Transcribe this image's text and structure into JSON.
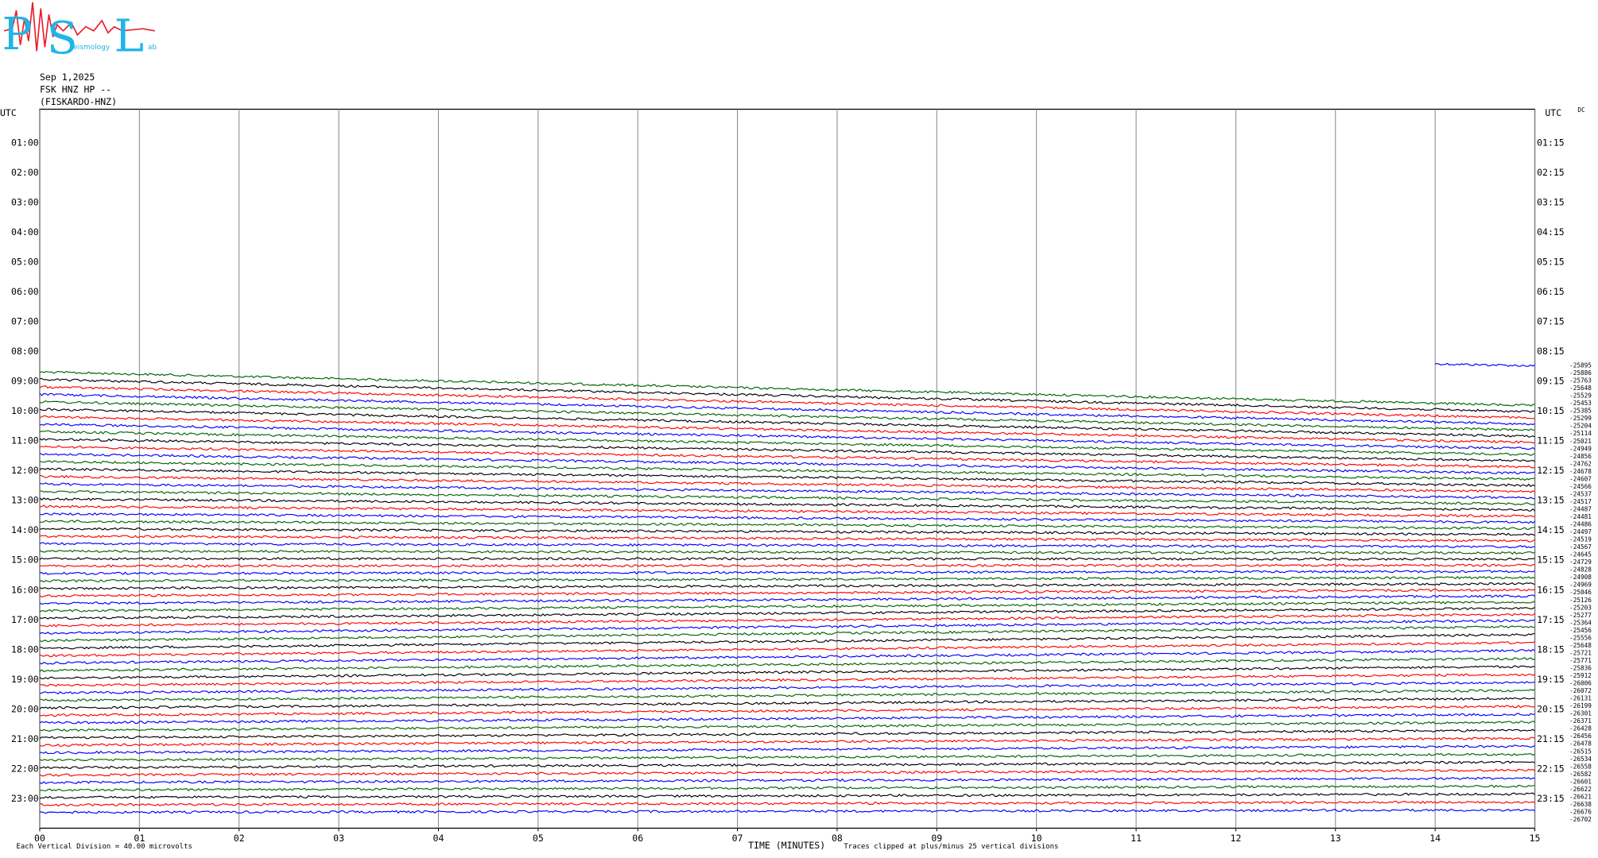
{
  "logo": {
    "p": "P",
    "s": "S",
    "l": "L",
    "seismology": "eismology",
    "lab": "ab"
  },
  "header": {
    "date": "Sep 1,2025",
    "station": "FSK HNZ HP --",
    "station_name": "(FISKARDO-HNZ)"
  },
  "chart_data": {
    "type": "helicorder",
    "left_axis_title": "UTC",
    "right_axis_title": "UTC",
    "dc_title": "DC",
    "left_hours": [
      "01:00",
      "02:00",
      "03:00",
      "04:00",
      "05:00",
      "06:00",
      "07:00",
      "08:00",
      "09:00",
      "10:00",
      "11:00",
      "12:00",
      "13:00",
      "14:00",
      "15:00",
      "16:00",
      "17:00",
      "18:00",
      "19:00",
      "20:00",
      "21:00",
      "22:00",
      "23:00"
    ],
    "right_hours": [
      "01:15",
      "02:15",
      "03:15",
      "04:15",
      "05:15",
      "06:15",
      "07:15",
      "08:15",
      "09:15",
      "10:15",
      "11:15",
      "12:15",
      "13:15",
      "14:15",
      "15:15",
      "16:15",
      "17:15",
      "18:15",
      "19:15",
      "20:15",
      "21:15",
      "22:15",
      "23:15"
    ],
    "xlim": [
      0,
      15
    ],
    "xticks": [
      {
        "value": 0,
        "label": "00"
      },
      {
        "value": 1,
        "label": "01"
      },
      {
        "value": 2,
        "label": "02"
      },
      {
        "value": 3,
        "label": "03"
      },
      {
        "value": 4,
        "label": "04"
      },
      {
        "value": 5,
        "label": "05"
      },
      {
        "value": 6,
        "label": "06"
      },
      {
        "value": 7,
        "label": "07"
      },
      {
        "value": 8,
        "label": "08"
      },
      {
        "value": 9,
        "label": "09"
      },
      {
        "value": 10,
        "label": "10"
      },
      {
        "value": 11,
        "label": "11"
      },
      {
        "value": 12,
        "label": "12"
      },
      {
        "value": 13,
        "label": "13"
      },
      {
        "value": 14,
        "label": "14"
      },
      {
        "value": 15,
        "label": "15"
      }
    ],
    "xlabel": "TIME (MINUTES)",
    "clip_note": "Traces clipped at plus/minus 25 vertical divisions",
    "scale_note": "Each Vertical Division =   40.00 microvolts",
    "grid": true,
    "trace_colors": [
      "#0000ff",
      "#006400",
      "#000000",
      "#ff0000"
    ],
    "offsets": [
      -25895,
      -25886,
      -25763,
      -25648,
      -25529,
      -25453,
      -25385,
      -25299,
      -25204,
      -25114,
      -25021,
      -24949,
      -24856,
      -24762,
      -24678,
      -24607,
      -24566,
      -24537,
      -24517,
      -24487,
      -24481,
      -24486,
      -24497,
      -24519,
      -24567,
      -24645,
      -24729,
      -24828,
      -24908,
      -24969,
      -25046,
      -25126,
      -25203,
      -25277,
      -25364,
      -25456,
      -25556,
      -25648,
      -25721,
      -25771,
      -25836,
      -25912,
      -26006,
      -26072,
      -26131,
      -26199,
      -26301,
      -26371,
      -26428,
      -26456,
      -26478,
      -26515,
      -26534,
      -26558,
      -26582,
      -26601,
      -26622,
      -26621,
      -26638,
      -26676,
      -26702
    ]
  }
}
